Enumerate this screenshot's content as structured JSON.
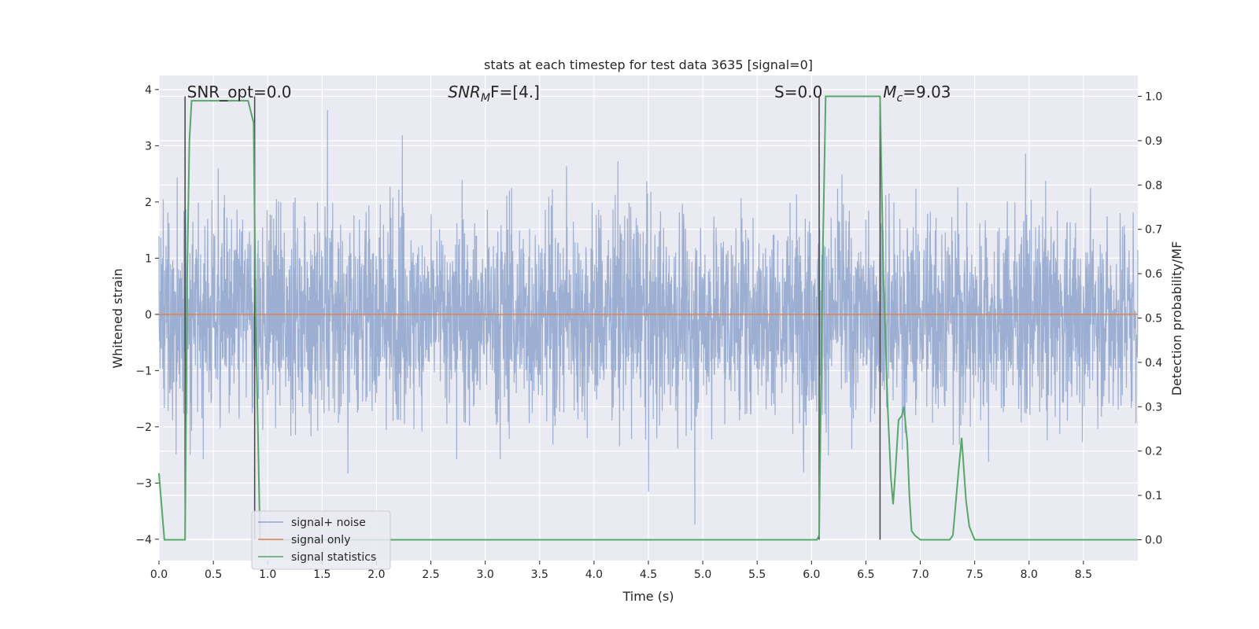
{
  "chart_data": {
    "type": "line",
    "title": "stats at each timestep for test data 3635 [signal=0]",
    "xlabel": "Time (s)",
    "ylabel_left": "Whitened strain",
    "ylabel_right": "Detection probability/MF",
    "xlim": [
      0,
      9.0
    ],
    "ylim_left": [
      -4.38,
      4.25
    ],
    "ylim_right": [
      -0.047,
      1.047
    ],
    "x_ticks": [
      "0.0",
      "0.5",
      "1.0",
      "1.5",
      "2.0",
      "2.5",
      "3.0",
      "3.5",
      "4.0",
      "4.5",
      "5.0",
      "5.5",
      "6.0",
      "6.5",
      "7.0",
      "7.5",
      "8.0",
      "8.5"
    ],
    "y_ticks_left": [
      "4",
      "3",
      "2",
      "1",
      "0",
      "−1",
      "−2",
      "−3",
      "−4"
    ],
    "y_ticks_right": [
      "1.0",
      "0.9",
      "0.8",
      "0.7",
      "0.6",
      "0.5",
      "0.4",
      "0.3",
      "0.2",
      "0.1",
      "0.0"
    ],
    "annotations": [
      {
        "label": "SNR_opt=0.0",
        "x": 0.2
      },
      {
        "label": "SNR",
        "sub": "M",
        "suffix": "F=[4.]",
        "x": 2.6
      },
      {
        "label": "S",
        "suffix": "=0.0",
        "x": 5.6
      },
      {
        "label": "M",
        "sub": "c",
        "suffix": "=9.03",
        "x": 6.6
      }
    ],
    "vlines_x": [
      0.24,
      0.88,
      6.07,
      6.63
    ],
    "legend": {
      "position": "lower-left",
      "entries": [
        "signal+ noise",
        "signal only",
        "signal statistics"
      ]
    },
    "colors": {
      "noise": "#8ea4cc",
      "signal": "#dd8452",
      "stats": "#55a868",
      "vline": "#444444",
      "background": "#eaeaf2",
      "grid": "#ffffff"
    },
    "series": [
      {
        "name": "signal+ noise",
        "description_axis": "left",
        "amplitude_envelope": [
          2.0,
          4.0
        ],
        "sample_rate_hz": 400
      },
      {
        "name": "signal only",
        "axis": "left",
        "constant": 0.0
      },
      {
        "name": "signal statistics",
        "axis": "right",
        "x": [
          0.0,
          0.05,
          0.1,
          0.15,
          0.2,
          0.24,
          0.26,
          0.28,
          0.3,
          0.32,
          0.4,
          0.5,
          0.6,
          0.7,
          0.8,
          0.82,
          0.87,
          0.89,
          0.93,
          1.0,
          2.0,
          3.0,
          4.0,
          5.0,
          6.0,
          6.05,
          6.07,
          6.1,
          6.13,
          6.2,
          6.4,
          6.6,
          6.63,
          6.66,
          6.7,
          6.73,
          6.75,
          6.77,
          6.8,
          6.83,
          6.85,
          6.88,
          6.9,
          6.92,
          6.95,
          7.0,
          7.1,
          7.2,
          7.27,
          7.3,
          7.35,
          7.38,
          7.42,
          7.45,
          7.5,
          7.6,
          8.0,
          8.5,
          9.0
        ],
        "y": [
          0.15,
          0.0,
          0.0,
          0.0,
          0.0,
          0.0,
          0.6,
          0.9,
          0.99,
          0.99,
          0.99,
          0.99,
          0.99,
          0.99,
          0.99,
          0.99,
          0.94,
          0.5,
          0.0,
          0.0,
          0.0,
          0.0,
          0.0,
          0.0,
          0.0,
          0.0,
          0.01,
          0.6,
          1.0,
          1.0,
          1.0,
          1.0,
          1.0,
          0.6,
          0.3,
          0.14,
          0.08,
          0.15,
          0.27,
          0.28,
          0.3,
          0.22,
          0.1,
          0.02,
          0.01,
          0.0,
          0.0,
          0.0,
          0.0,
          0.01,
          0.15,
          0.23,
          0.09,
          0.03,
          0.0,
          0.0,
          0.0,
          0.0,
          0.0
        ]
      }
    ]
  }
}
